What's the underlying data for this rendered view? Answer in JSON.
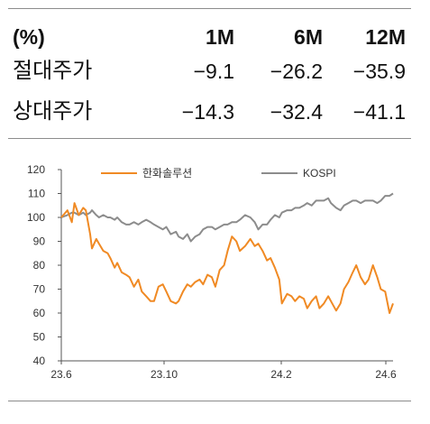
{
  "table": {
    "header": {
      "label": "(%)",
      "cols": [
        "1M",
        "6M",
        "12M"
      ]
    },
    "rows": [
      {
        "label": "절대주가",
        "values": [
          "−9.1",
          "−26.2",
          "−35.9"
        ]
      },
      {
        "label": "상대주가",
        "values": [
          "−14.3",
          "−32.4",
          "−41.1"
        ]
      }
    ]
  },
  "chart_data": {
    "type": "line",
    "ylim": [
      40,
      120
    ],
    "yticks": [
      "40",
      "50",
      "60",
      "70",
      "80",
      "90",
      "100",
      "110",
      "120"
    ],
    "xticks": [
      "23.6",
      "23.10",
      "24.2",
      "24.6"
    ],
    "x_range": [
      "2023-06-01",
      "2024-06-14"
    ],
    "grid": false,
    "legend": "top",
    "series": [
      {
        "name": "한화솔루션",
        "color": "#f08a24",
        "x": [
          "2023-06-01",
          "2023-06-08",
          "2023-06-13",
          "2023-06-16",
          "2023-06-21",
          "2023-06-26",
          "2023-06-29",
          "2023-07-04",
          "2023-07-06",
          "2023-07-11",
          "2023-07-14",
          "2023-07-19",
          "2023-07-24",
          "2023-07-27",
          "2023-08-01",
          "2023-08-04",
          "2023-08-09",
          "2023-08-14",
          "2023-08-18",
          "2023-08-23",
          "2023-08-28",
          "2023-09-01",
          "2023-09-06",
          "2023-09-11",
          "2023-09-15",
          "2023-09-20",
          "2023-09-25",
          "2023-09-29",
          "2023-10-04",
          "2023-10-10",
          "2023-10-13",
          "2023-10-18",
          "2023-10-23",
          "2023-10-27",
          "2023-11-01",
          "2023-11-06",
          "2023-11-10",
          "2023-11-15",
          "2023-11-20",
          "2023-11-24",
          "2023-11-29",
          "2023-12-04",
          "2023-12-08",
          "2023-12-13",
          "2023-12-18",
          "2023-12-22",
          "2023-12-28",
          "2024-01-03",
          "2024-01-08",
          "2024-01-12",
          "2024-01-17",
          "2024-01-22",
          "2024-01-26",
          "2024-01-31",
          "2024-02-05",
          "2024-02-08",
          "2024-02-14",
          "2024-02-19",
          "2024-02-23",
          "2024-02-28",
          "2024-03-04",
          "2024-03-08",
          "2024-03-13",
          "2024-03-18",
          "2024-03-22",
          "2024-03-27",
          "2024-04-01",
          "2024-04-04",
          "2024-04-10",
          "2024-04-15",
          "2024-04-19",
          "2024-04-24",
          "2024-04-29",
          "2024-05-03",
          "2024-05-08",
          "2024-05-13",
          "2024-05-17",
          "2024-05-22",
          "2024-05-27",
          "2024-05-31",
          "2024-06-05",
          "2024-06-10",
          "2024-06-14"
        ],
        "values": [
          100,
          103,
          98,
          106,
          101,
          104,
          103,
          93,
          87,
          91,
          89,
          86,
          85,
          83,
          79,
          81,
          77,
          76,
          75,
          71,
          74,
          69,
          67,
          65,
          65,
          71,
          72,
          69,
          65,
          64,
          65,
          69,
          72,
          71,
          73,
          74,
          72,
          76,
          75,
          71,
          78,
          80,
          86,
          92,
          90,
          86,
          88,
          91,
          88,
          89,
          86,
          82,
          83,
          79,
          74,
          64,
          68,
          67,
          65,
          67,
          66,
          62,
          65,
          67,
          62,
          64,
          67,
          65,
          61,
          64,
          70,
          73,
          77,
          80,
          75,
          72,
          74,
          80,
          75,
          70,
          69,
          60,
          64
        ]
      },
      {
        "name": "KOSPI",
        "color": "#8c8c8c",
        "x": [
          "2023-06-01",
          "2023-06-08",
          "2023-06-13",
          "2023-06-16",
          "2023-06-21",
          "2023-06-26",
          "2023-06-29",
          "2023-07-04",
          "2023-07-06",
          "2023-07-11",
          "2023-07-14",
          "2023-07-19",
          "2023-07-24",
          "2023-07-27",
          "2023-08-01",
          "2023-08-04",
          "2023-08-09",
          "2023-08-14",
          "2023-08-18",
          "2023-08-23",
          "2023-08-28",
          "2023-09-01",
          "2023-09-06",
          "2023-09-11",
          "2023-09-15",
          "2023-09-20",
          "2023-09-25",
          "2023-09-29",
          "2023-10-04",
          "2023-10-10",
          "2023-10-13",
          "2023-10-18",
          "2023-10-23",
          "2023-10-27",
          "2023-11-01",
          "2023-11-06",
          "2023-11-10",
          "2023-11-15",
          "2023-11-20",
          "2023-11-24",
          "2023-11-29",
          "2023-12-04",
          "2023-12-08",
          "2023-12-13",
          "2023-12-18",
          "2023-12-22",
          "2023-12-28",
          "2024-01-03",
          "2024-01-08",
          "2024-01-12",
          "2024-01-17",
          "2024-01-22",
          "2024-01-26",
          "2024-01-31",
          "2024-02-05",
          "2024-02-08",
          "2024-02-14",
          "2024-02-19",
          "2024-02-23",
          "2024-02-28",
          "2024-03-04",
          "2024-03-08",
          "2024-03-13",
          "2024-03-18",
          "2024-03-22",
          "2024-03-27",
          "2024-04-01",
          "2024-04-04",
          "2024-04-10",
          "2024-04-15",
          "2024-04-19",
          "2024-04-24",
          "2024-04-29",
          "2024-05-03",
          "2024-05-08",
          "2024-05-13",
          "2024-05-17",
          "2024-05-22",
          "2024-05-27",
          "2024-05-31",
          "2024-06-05",
          "2024-06-10",
          "2024-06-14"
        ],
        "values": [
          100,
          101,
          102,
          102,
          101,
          102,
          101,
          102,
          103,
          101,
          100,
          101,
          100,
          100,
          99,
          100,
          98,
          97,
          97,
          98,
          97,
          98,
          99,
          98,
          97,
          96,
          95,
          96,
          93,
          94,
          92,
          91,
          93,
          90,
          92,
          93,
          95,
          96,
          96,
          95,
          96,
          97,
          97,
          98,
          98,
          99,
          101,
          100,
          98,
          95,
          97,
          97,
          99,
          101,
          100,
          102,
          103,
          103,
          104,
          104,
          105,
          106,
          105,
          107,
          107,
          107,
          108,
          106,
          104,
          103,
          105,
          106,
          107,
          107,
          106,
          107,
          107,
          107,
          106,
          107,
          109,
          109,
          110
        ]
      }
    ]
  }
}
